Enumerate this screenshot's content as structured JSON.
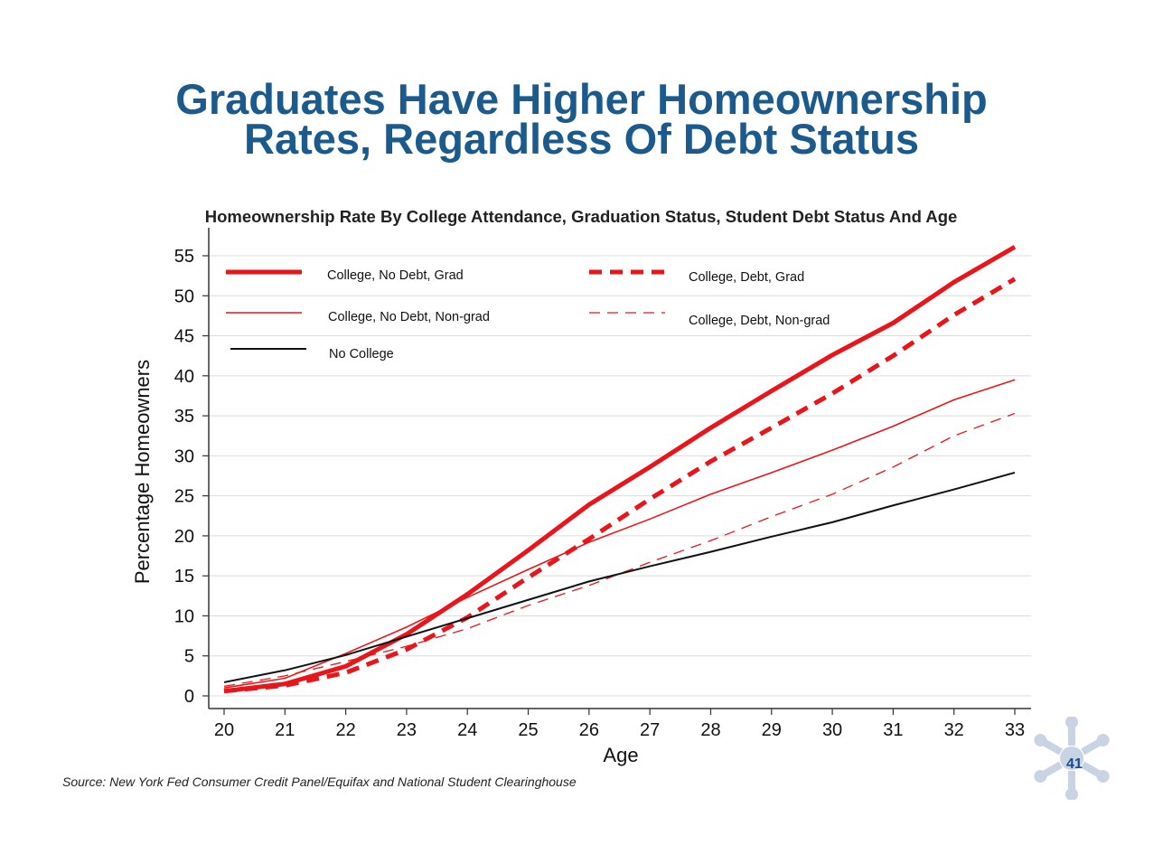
{
  "slide": {
    "title_line1": "Graduates Have Higher Homeownership",
    "title_line2": "Rates, Regardless Of Debt Status",
    "source": "Source: New York Fed Consumer Credit Panel/Equifax and National Student Clearinghouse",
    "page_number": "41"
  },
  "chart_data": {
    "type": "line",
    "title": "Homeownership Rate By College Attendance, Graduation Status, Student Debt Status And Age",
    "xlabel": "Age",
    "ylabel": "Percentage Homeowners",
    "x": [
      20,
      21,
      22,
      23,
      24,
      25,
      26,
      27,
      28,
      29,
      30,
      31,
      32,
      33
    ],
    "xlim": [
      20,
      33
    ],
    "ylim": [
      0,
      55
    ],
    "yticks": [
      0,
      5,
      10,
      15,
      20,
      25,
      30,
      35,
      40,
      45,
      50,
      55
    ],
    "grid": true,
    "legend_position": "top-left",
    "series": [
      {
        "name": "College, No Debt, Grad",
        "color": "#e8161b",
        "style": "solid-thick",
        "values": [
          0.6,
          1.5,
          3.7,
          7.7,
          12.7,
          18.2,
          23.9,
          28.6,
          33.5,
          38.1,
          42.6,
          46.6,
          51.7,
          56.1
        ]
      },
      {
        "name": "College, Debt, Grad",
        "color": "#e8161b",
        "style": "dash-thick",
        "values": [
          0.6,
          1.3,
          2.9,
          5.8,
          9.8,
          14.8,
          19.6,
          24.6,
          29.3,
          33.5,
          37.8,
          42.5,
          47.6,
          52.1
        ]
      },
      {
        "name": "College, No Debt, Non-grad",
        "color": "#e8161b",
        "style": "solid-thin",
        "values": [
          1.0,
          2.2,
          5.3,
          8.6,
          12.3,
          15.8,
          19.2,
          22.1,
          25.2,
          27.9,
          30.7,
          33.7,
          37.0,
          39.5
        ]
      },
      {
        "name": "College, Debt, Non-grad",
        "color": "#e8161b",
        "style": "dash-thin",
        "values": [
          1.2,
          2.5,
          4.3,
          6.2,
          8.4,
          11.3,
          13.8,
          16.7,
          19.4,
          22.4,
          25.2,
          28.6,
          32.5,
          35.3
        ]
      },
      {
        "name": "No College",
        "color": "#111111",
        "style": "solid-medium",
        "values": [
          1.7,
          3.2,
          5.1,
          7.4,
          9.7,
          12.0,
          14.3,
          16.2,
          18.0,
          19.9,
          21.7,
          23.8,
          25.8,
          27.9
        ]
      }
    ]
  }
}
